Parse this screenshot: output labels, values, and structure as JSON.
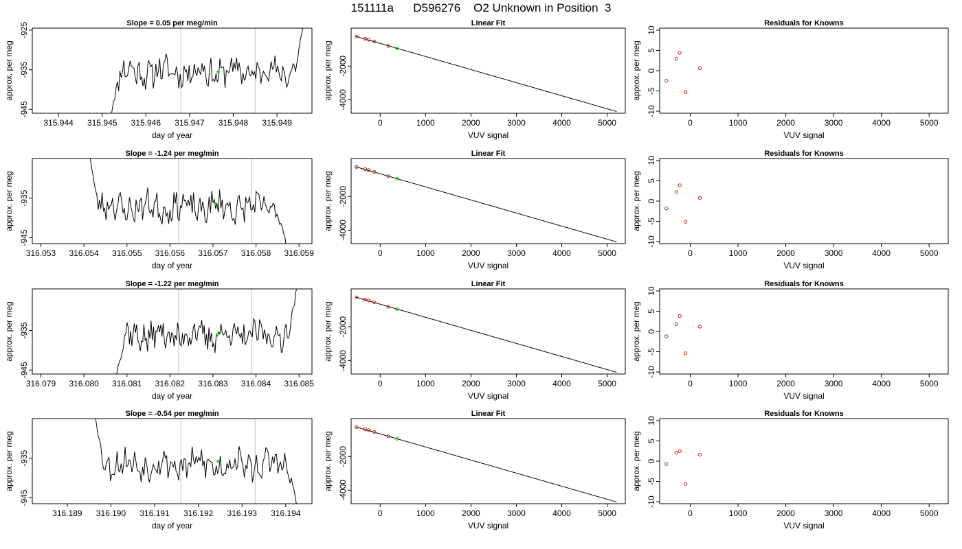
{
  "figure": {
    "title": "151111a      D596276    O2 Unknown in Position  3"
  },
  "chart_data": [
    {
      "row": 1,
      "type": "line",
      "title": "Slope =  0.05  per meg/min",
      "xlabel": "day of year",
      "ylabel": "approx. per meg",
      "xlim": [
        315.9434,
        315.9498
      ],
      "ylim": [
        -946,
        -924.5
      ],
      "xticks": [
        "315.944",
        "315.945",
        "315.946",
        "315.947",
        "315.948",
        "315.949"
      ],
      "yticks": [
        "-945",
        "-935",
        "-925"
      ],
      "t_start": 315.9452,
      "t_end": 315.9496,
      "trace_mean": -935.5,
      "seed": 11,
      "entry_level": -947,
      "exit_level": -924,
      "vlines": [
        315.9468,
        315.9485
      ],
      "marker": {
        "x": 315.94765,
        "y": -935.5
      }
    },
    {
      "row": 2,
      "type": "line",
      "title": "Slope =  -1.24  per meg/min",
      "xlabel": "day of year",
      "ylabel": "approx. per meg",
      "xlim": [
        316.0528,
        316.0593
      ],
      "ylim": [
        -946.5,
        -925
      ],
      "xticks": [
        "316.053",
        "316.054",
        "316.055",
        "316.056",
        "316.057",
        "316.058",
        "316.059"
      ],
      "yticks": [
        "-945",
        "-935"
      ],
      "t_start": 316.05415,
      "t_end": 316.0587,
      "trace_mean": -937.3,
      "seed": 23,
      "entry_level": -925,
      "exit_level": -947,
      "vlines": [
        316.0562,
        316.0579
      ],
      "marker": {
        "x": 316.05705,
        "y": -936.3
      }
    },
    {
      "row": 3,
      "type": "line",
      "title": "Slope =  -1.22  per meg/min",
      "xlabel": "day of year",
      "ylabel": "approx. per meg",
      "xlim": [
        316.0788,
        316.0853
      ],
      "ylim": [
        -946,
        -924.5
      ],
      "xticks": [
        "316.079",
        "316.080",
        "316.081",
        "316.082",
        "316.083",
        "316.084",
        "316.085"
      ],
      "yticks": [
        "-945",
        "-935"
      ],
      "t_start": 316.08075,
      "t_end": 316.08495,
      "trace_mean": -936.2,
      "seed": 37,
      "entry_level": -947,
      "exit_level": -924,
      "vlines": [
        316.0822,
        316.0839
      ],
      "marker": {
        "x": 316.0831,
        "y": -936.0
      }
    },
    {
      "row": 4,
      "type": "line",
      "title": "Slope =  -0.54  per meg/min",
      "xlabel": "day of year",
      "ylabel": "approx. per meg",
      "xlim": [
        316.1882,
        316.1946
      ],
      "ylim": [
        -946.5,
        -925
      ],
      "xticks": [
        "316.189",
        "316.190",
        "316.191",
        "316.192",
        "316.193",
        "316.194"
      ],
      "yticks": [
        "-945",
        "-935"
      ],
      "t_start": 316.18965,
      "t_end": 316.19425,
      "trace_mean": -936.6,
      "seed": 53,
      "entry_level": -925,
      "exit_level": -947,
      "vlines": [
        316.1916,
        316.1933
      ],
      "marker": {
        "x": 316.19245,
        "y": -935.8
      }
    },
    {
      "row": 1,
      "type": "scatter",
      "title": "Linear Fit",
      "xlabel": "VUV signal",
      "ylabel": "approx. per meg",
      "xlim": [
        -640,
        5400
      ],
      "ylim": [
        -4800,
        250
      ],
      "xticks": [
        "0",
        "1000",
        "2000",
        "3000",
        "4000",
        "5000"
      ],
      "yticks": [
        "-2000",
        "-4000"
      ],
      "knowns": [
        {
          "x": -520,
          "y": -250
        },
        {
          "x": -330,
          "y": -380
        },
        {
          "x": -250,
          "y": -440
        },
        {
          "x": -130,
          "y": -540
        },
        {
          "x": 180,
          "y": -800
        }
      ],
      "unknown": {
        "x": 370,
        "y": -950
      },
      "fit_line": [
        {
          "x": -540,
          "y": -240
        },
        {
          "x": 5210,
          "y": -4700
        }
      ]
    },
    {
      "row": 2,
      "type": "scatter",
      "title": "Linear Fit",
      "xlabel": "VUV signal",
      "ylabel": "approx. per meg",
      "xlim": [
        -640,
        5400
      ],
      "ylim": [
        -4800,
        250
      ],
      "xticks": [
        "0",
        "1000",
        "2000",
        "3000",
        "4000",
        "5000"
      ],
      "yticks": [
        "-2000",
        "-4000"
      ],
      "knowns": [
        {
          "x": -520,
          "y": -250
        },
        {
          "x": -330,
          "y": -380
        },
        {
          "x": -250,
          "y": -440
        },
        {
          "x": -130,
          "y": -540
        },
        {
          "x": 180,
          "y": -800
        }
      ],
      "unknown": {
        "x": 370,
        "y": -950
      },
      "fit_line": [
        {
          "x": -540,
          "y": -240
        },
        {
          "x": 5210,
          "y": -4700
        }
      ]
    },
    {
      "row": 3,
      "type": "scatter",
      "title": "Linear Fit",
      "xlabel": "VUV signal",
      "ylabel": "approx. per meg",
      "xlim": [
        -640,
        5400
      ],
      "ylim": [
        -4800,
        250
      ],
      "xticks": [
        "0",
        "1000",
        "2000",
        "3000",
        "4000",
        "5000"
      ],
      "yticks": [
        "-2000",
        "-4000"
      ],
      "knowns": [
        {
          "x": -520,
          "y": -250
        },
        {
          "x": -330,
          "y": -380
        },
        {
          "x": -250,
          "y": -440
        },
        {
          "x": -130,
          "y": -540
        },
        {
          "x": 180,
          "y": -800
        }
      ],
      "unknown": {
        "x": 370,
        "y": -950
      },
      "fit_line": [
        {
          "x": -540,
          "y": -240
        },
        {
          "x": 5210,
          "y": -4700
        }
      ]
    },
    {
      "row": 4,
      "type": "scatter",
      "title": "Linear Fit",
      "xlabel": "VUV signal",
      "ylabel": "approx. per meg",
      "xlim": [
        -640,
        5400
      ],
      "ylim": [
        -4800,
        250
      ],
      "xticks": [
        "0",
        "1000",
        "2000",
        "3000",
        "4000",
        "5000"
      ],
      "yticks": [
        "-2000",
        "-4000"
      ],
      "knowns": [
        {
          "x": -520,
          "y": -250
        },
        {
          "x": -330,
          "y": -380
        },
        {
          "x": -250,
          "y": -440
        },
        {
          "x": -130,
          "y": -540
        },
        {
          "x": 180,
          "y": -800
        }
      ],
      "unknown": {
        "x": 370,
        "y": -950
      },
      "fit_line": [
        {
          "x": -540,
          "y": -240
        },
        {
          "x": 5210,
          "y": -4700
        }
      ]
    },
    {
      "row": 1,
      "type": "scatter",
      "title": "Residuals for Knowns",
      "xlabel": "VUV signal",
      "ylabel": "approx. per meg",
      "xlim": [
        -640,
        5400
      ],
      "ylim": [
        -10.5,
        10.5
      ],
      "xticks": [
        "0",
        "1000",
        "2000",
        "3000",
        "4000",
        "5000"
      ],
      "yticks": [
        "-10",
        "-5",
        "0",
        "5",
        "10"
      ],
      "points": [
        {
          "x": -500,
          "y": -2.5
        },
        {
          "x": -290,
          "y": 3.0
        },
        {
          "x": -220,
          "y": 4.4
        },
        {
          "x": -100,
          "y": -5.3
        },
        {
          "x": 200,
          "y": 0.6
        }
      ]
    },
    {
      "row": 2,
      "type": "scatter",
      "title": "Residuals for Knowns",
      "xlabel": "VUV signal",
      "ylabel": "approx. per meg",
      "xlim": [
        -640,
        5400
      ],
      "ylim": [
        -10.5,
        10.5
      ],
      "xticks": [
        "0",
        "1000",
        "2000",
        "3000",
        "4000",
        "5000"
      ],
      "yticks": [
        "-10",
        "-5",
        "0",
        "5",
        "10"
      ],
      "points": [
        {
          "x": -500,
          "y": -1.8
        },
        {
          "x": -290,
          "y": 2.2
        },
        {
          "x": -220,
          "y": 3.9
        },
        {
          "x": -100,
          "y": -5.1
        },
        {
          "x": 200,
          "y": 0.8
        }
      ]
    },
    {
      "row": 3,
      "type": "scatter",
      "title": "Residuals for Knowns",
      "xlabel": "VUV signal",
      "ylabel": "approx. per meg",
      "xlim": [
        -640,
        5400
      ],
      "ylim": [
        -10.5,
        10.5
      ],
      "xticks": [
        "0",
        "1000",
        "2000",
        "3000",
        "4000",
        "5000"
      ],
      "yticks": [
        "-10",
        "-5",
        "0",
        "5",
        "10"
      ],
      "points": [
        {
          "x": -500,
          "y": -1.2
        },
        {
          "x": -290,
          "y": 1.8
        },
        {
          "x": -220,
          "y": 3.8
        },
        {
          "x": -100,
          "y": -5.4
        },
        {
          "x": 200,
          "y": 1.2
        }
      ]
    },
    {
      "row": 4,
      "type": "scatter",
      "title": "Residuals for Knowns",
      "xlabel": "VUV signal",
      "ylabel": "approx. per meg",
      "xlim": [
        -640,
        5400
      ],
      "ylim": [
        -10.5,
        10.5
      ],
      "xticks": [
        "0",
        "1000",
        "2000",
        "3000",
        "4000",
        "5000"
      ],
      "yticks": [
        "-10",
        "-5",
        "0",
        "5",
        "10"
      ],
      "points": [
        {
          "x": -500,
          "y": -0.7
        },
        {
          "x": -290,
          "y": 2.1
        },
        {
          "x": -220,
          "y": 2.5
        },
        {
          "x": -100,
          "y": -5.6
        },
        {
          "x": 200,
          "y": 1.6
        }
      ]
    }
  ]
}
